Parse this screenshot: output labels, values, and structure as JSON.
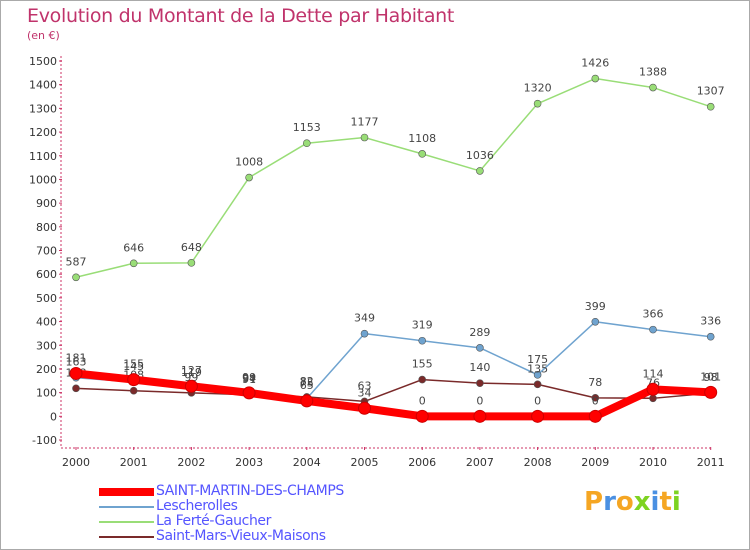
{
  "chart_data": {
    "type": "line",
    "title": "Evolution du Montant de la Dette par Habitant",
    "subtitle": "(en €)",
    "x": [
      "2000",
      "2001",
      "2002",
      "2003",
      "2004",
      "2005",
      "2006",
      "2007",
      "2008",
      "2009",
      "2010",
      "2011"
    ],
    "ylim": [
      -100,
      1500
    ],
    "yticks": [
      "-100",
      "0",
      "100",
      "200",
      "300",
      "400",
      "500",
      "600",
      "700",
      "800",
      "900",
      "1000",
      "1100",
      "1200",
      "1300",
      "1400",
      "1500"
    ],
    "grid": false,
    "legend_position": "bottom-left",
    "series": [
      {
        "name": "SAINT-MARTIN-DES-CHAMPS",
        "color": "#ff0000",
        "values": [
          181,
          155,
          127,
          99,
          65,
          34,
          0,
          0,
          0,
          0,
          114,
          101
        ]
      },
      {
        "name": "Lescherolles",
        "color": "#6fa3cf",
        "values": [
          163,
          145,
          119,
          94,
          75,
          349,
          319,
          289,
          175,
          399,
          366,
          336
        ]
      },
      {
        "name": "La Ferté-Gaucher",
        "color": "#99dd77",
        "values": [
          587,
          646,
          648,
          1008,
          1153,
          1177,
          1108,
          1036,
          1320,
          1426,
          1388,
          1307
        ]
      },
      {
        "name": "Saint-Mars-Vieux-Maisons",
        "color": "#7a2a2a",
        "values": [
          118,
          108,
          99,
          91,
          82,
          63,
          155,
          140,
          135,
          78,
          76,
          98
        ]
      }
    ]
  },
  "branding": {
    "logo_text": "Proxiti",
    "logo_colors": [
      "#f5a623",
      "#4a90e2",
      "#f5a623",
      "#7ed321",
      "#4a90e2",
      "#f5a623",
      "#7ed321"
    ]
  }
}
